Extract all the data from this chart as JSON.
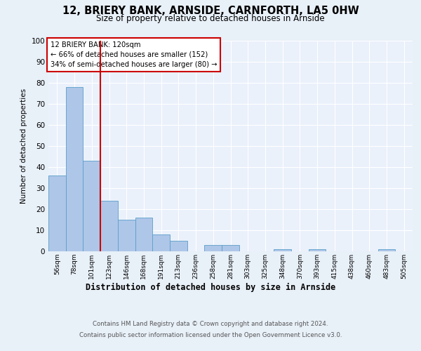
{
  "title": "12, BRIERY BANK, ARNSIDE, CARNFORTH, LA5 0HW",
  "subtitle": "Size of property relative to detached houses in Arnside",
  "xlabel": "Distribution of detached houses by size in Arnside",
  "ylabel": "Number of detached properties",
  "categories": [
    "56sqm",
    "78sqm",
    "101sqm",
    "123sqm",
    "146sqm",
    "168sqm",
    "191sqm",
    "213sqm",
    "236sqm",
    "258sqm",
    "281sqm",
    "303sqm",
    "325sqm",
    "348sqm",
    "370sqm",
    "393sqm",
    "415sqm",
    "438sqm",
    "460sqm",
    "483sqm",
    "505sqm"
  ],
  "values": [
    36,
    78,
    43,
    24,
    15,
    16,
    8,
    5,
    0,
    3,
    3,
    0,
    0,
    1,
    0,
    1,
    0,
    0,
    0,
    1,
    0
  ],
  "bar_color": "#aec6e8",
  "bar_edge_color": "#5a9fc8",
  "property_line_x": 2.5,
  "property_label": "12 BRIERY BANK: 120sqm",
  "annotation_line1": "← 66% of detached houses are smaller (152)",
  "annotation_line2": "34% of semi-detached houses are larger (80) →",
  "annotation_box_color": "#ffffff",
  "annotation_box_edge_color": "#cc0000",
  "red_line_color": "#cc0000",
  "ylim": [
    0,
    100
  ],
  "yticks": [
    0,
    10,
    20,
    30,
    40,
    50,
    60,
    70,
    80,
    90,
    100
  ],
  "footer_line1": "Contains HM Land Registry data © Crown copyright and database right 2024.",
  "footer_line2": "Contains public sector information licensed under the Open Government Licence v3.0.",
  "bg_color": "#e8f0f8",
  "plot_bg_color": "#eaf1fb"
}
